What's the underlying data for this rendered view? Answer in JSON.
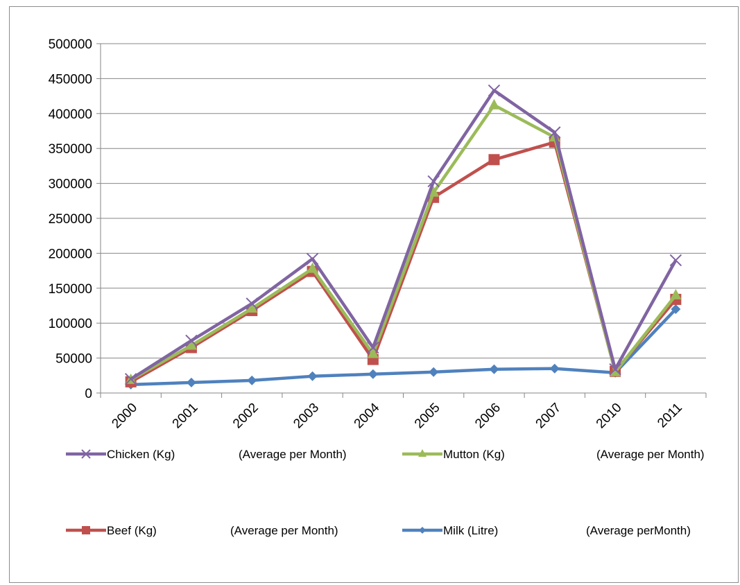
{
  "chart_data": {
    "type": "line",
    "title": "",
    "xlabel": "",
    "ylabel": "",
    "categories": [
      "2000",
      "2001",
      "2002",
      "2003",
      "2004",
      "2005",
      "2006",
      "2007",
      "2010",
      "2011"
    ],
    "ylim": [
      0,
      500000
    ],
    "yticks": [
      0,
      50000,
      100000,
      150000,
      200000,
      250000,
      300000,
      350000,
      400000,
      450000,
      500000
    ],
    "ytick_labels": [
      "0",
      "50000",
      "100000",
      "150000",
      "200000",
      "250000",
      "300000",
      "350000",
      "400000",
      "450000",
      "500000"
    ],
    "grid": true,
    "legend_position": "bottom",
    "series": [
      {
        "name": "Chicken (Kg)",
        "note": "(Average per Month)",
        "color": "#8064a2",
        "marker": "x",
        "values": [
          20000,
          75000,
          128000,
          192000,
          65000,
          303000,
          433000,
          373000,
          34000,
          190000
        ]
      },
      {
        "name": "Mutton  (Kg)",
        "note": "(Average per Month)",
        "color": "#9bbb59",
        "marker": "triangle",
        "values": [
          19000,
          68000,
          121000,
          178000,
          56000,
          287000,
          412000,
          366000,
          30000,
          140000
        ]
      },
      {
        "name": "Beef  (Kg)",
        "note": "(Average per Month)",
        "color": "#c0504d",
        "marker": "square",
        "values": [
          16000,
          65000,
          118000,
          174000,
          48000,
          280000,
          334000,
          359000,
          31000,
          134000
        ]
      },
      {
        "name": "Milk  (Litre)",
        "note": "(Average perMonth)",
        "color": "#4f81bd",
        "marker": "diamond",
        "values": [
          12000,
          15000,
          18000,
          24000,
          27000,
          30000,
          34000,
          35000,
          29000,
          120000
        ]
      }
    ]
  }
}
